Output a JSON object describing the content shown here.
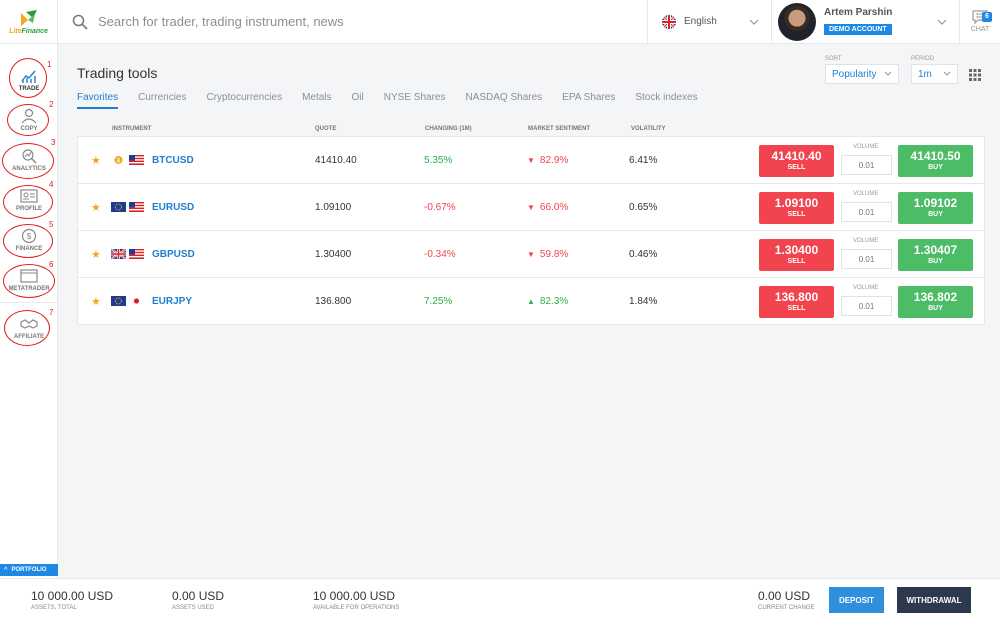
{
  "header": {
    "logo_text_a": "Lite",
    "logo_text_b": "Finance",
    "search_placeholder": "Search for trader, trading instrument, news",
    "language": "English",
    "user_name": "Artem Parshin",
    "account_type": "DEMO ACCOUNT",
    "chat_label": "CHAT",
    "chat_count": "6"
  },
  "sidebar": {
    "items": [
      {
        "label": "TRADE",
        "icon": "chart-icon",
        "number": "1"
      },
      {
        "label": "COPY",
        "icon": "user-icon",
        "number": "2"
      },
      {
        "label": "ANALYTICS",
        "icon": "analytics-icon",
        "number": "3"
      },
      {
        "label": "PROFILE",
        "icon": "id-card-icon",
        "number": "4"
      },
      {
        "label": "FINANCE",
        "icon": "dollar-icon",
        "number": "5"
      },
      {
        "label": "METATRADER",
        "icon": "window-icon",
        "number": "6"
      },
      {
        "label": "AFFILIATE",
        "icon": "handshake-icon",
        "number": "7"
      }
    ],
    "portfolio_label": "PORTFOLIO"
  },
  "main": {
    "title": "Trading tools",
    "tabs": [
      "Favorites",
      "Currencies",
      "Cryptocurrencies",
      "Metals",
      "Oil",
      "NYSE Shares",
      "NASDAQ Shares",
      "EPA Shares",
      "Stock indexes"
    ],
    "sort_label": "SORT",
    "sort_value": "Popularity",
    "period_label": "PERIOD",
    "period_value": "1m",
    "columns": {
      "instrument": "INSTRUMENT",
      "quote": "QUOTE",
      "changing": "CHANGING (1M)",
      "sentiment": "MARKET SENTIMENT",
      "volatility": "VOLATILITY"
    },
    "volume_label": "VOLUME",
    "sell_label": "SELL",
    "buy_label": "BUY",
    "rows": [
      {
        "symbol": "BTCUSD",
        "quote": "41410.40",
        "change": "5.35%",
        "change_dir": "pos",
        "sentiment": "82.9%",
        "sentiment_dir": "down",
        "volatility": "6.41%",
        "sell": "41410.40",
        "buy": "41410.50",
        "volume": "0.01",
        "flags": [
          "btc",
          "us"
        ]
      },
      {
        "symbol": "EURUSD",
        "quote": "1.09100",
        "change": "-0.67%",
        "change_dir": "neg",
        "sentiment": "66.0%",
        "sentiment_dir": "down",
        "volatility": "0.65%",
        "sell": "1.09100",
        "buy": "1.09102",
        "volume": "0.01",
        "flags": [
          "eu",
          "us"
        ]
      },
      {
        "symbol": "GBPUSD",
        "quote": "1.30400",
        "change": "-0.34%",
        "change_dir": "neg",
        "sentiment": "59.8%",
        "sentiment_dir": "down",
        "volatility": "0.46%",
        "sell": "1.30400",
        "buy": "1.30407",
        "volume": "0.01",
        "flags": [
          "gb",
          "us"
        ]
      },
      {
        "symbol": "EURJPY",
        "quote": "136.800",
        "change": "7.25%",
        "change_dir": "pos",
        "sentiment": "82.3%",
        "sentiment_dir": "up",
        "volatility": "1.84%",
        "sell": "136.800",
        "buy": "136.802",
        "volume": "0.01",
        "flags": [
          "eu",
          "jp"
        ]
      }
    ]
  },
  "footer": {
    "assets_total": "10 000.00 USD",
    "assets_total_label": "ASSETS, TOTAL",
    "assets_used": "0.00 USD",
    "assets_used_label": "ASSETS USED",
    "available": "10 000.00 USD",
    "available_label": "AVAILABLE FOR OPERATIONS",
    "current_change": "0.00 USD",
    "current_change_label": "CURRENT CHANGE",
    "deposit_label": "DEPOSIT",
    "withdrawal_label": "WITHDRAWAL"
  },
  "colors": {
    "accent": "#1e7fd0",
    "sell": "#f2444f",
    "buy": "#4cbc67",
    "annotation": "#e01b1b"
  }
}
